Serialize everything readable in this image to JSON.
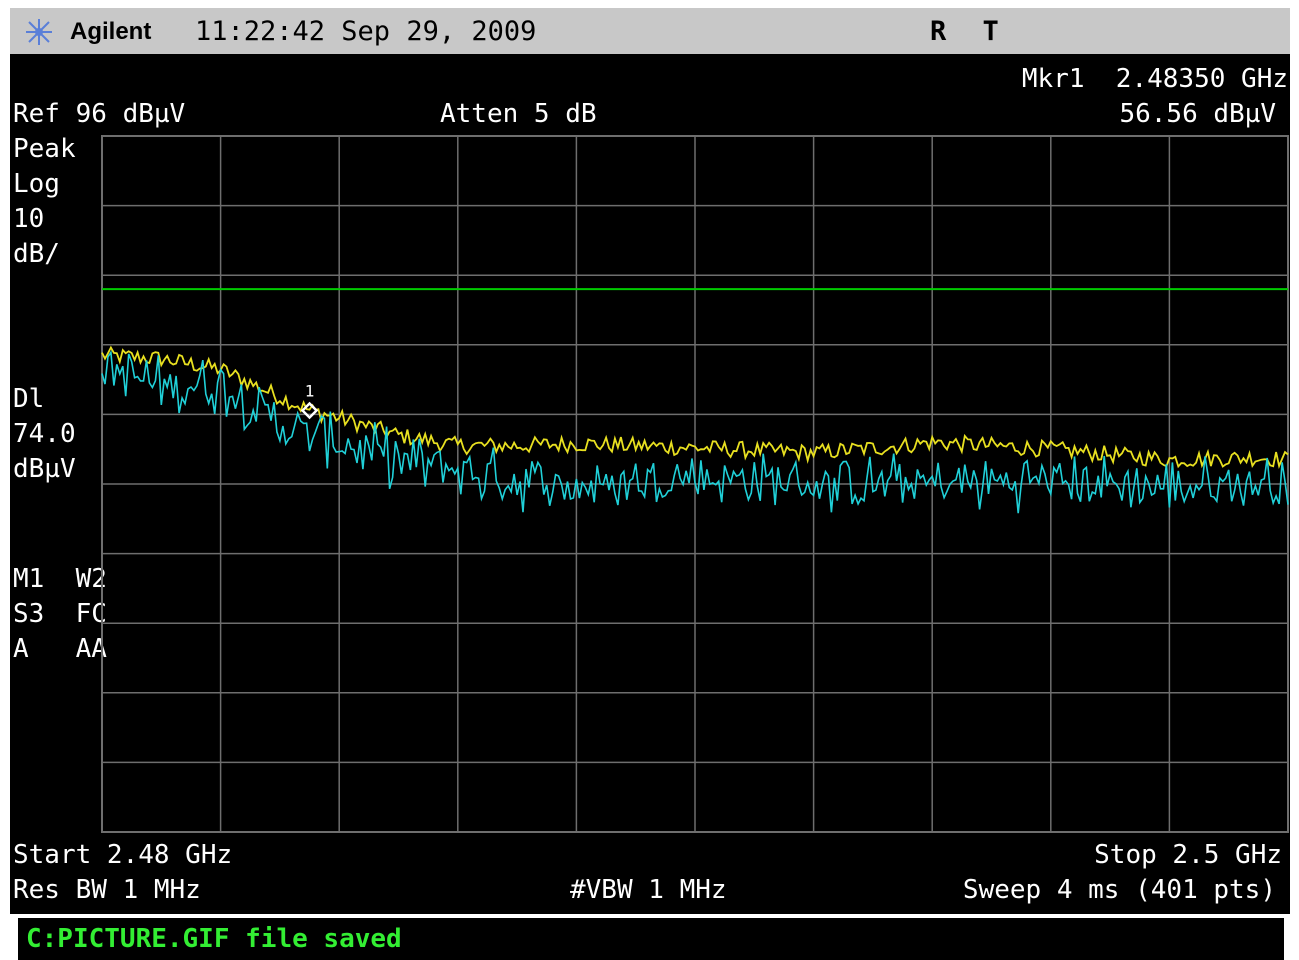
{
  "header": {
    "brand": "Agilent",
    "datetime": "11:22:42  Sep 29, 2009",
    "flags": "R T",
    "logo_icon": "agilent-spark-icon"
  },
  "display": {
    "ref_level": "Ref 96 dBµV",
    "attenuation": "Atten 5 dB",
    "marker_label": "Mkr1  2.48350 GHz",
    "marker_value": "56.56 dBµV",
    "detector": "Peak",
    "scale_type": "Log",
    "scale_value": "10",
    "scale_unit": "dB/",
    "display_line_label": "Dl",
    "display_line_value": "74.0",
    "display_line_unit": "dBµV",
    "trace_modes": [
      "M1  W2",
      "S3  FC",
      "A   AA"
    ],
    "marker_number": "1",
    "start_freq": "Start 2.48 GHz",
    "stop_freq": "Stop 2.5 GHz",
    "res_bw": "Res BW 1 MHz",
    "vbw": "#VBW 1 MHz",
    "sweep": "Sweep 4 ms (401 pts)"
  },
  "status": {
    "message": "C:PICTURE.GIF file saved"
  },
  "colors": {
    "screen_bg": "#000000",
    "grid": "#6e6e6e",
    "display_line": "#00cc00",
    "trace_max_hold": "#e8e020",
    "trace_clear_write": "#20d0d8",
    "marker": "#ffffff"
  },
  "chart_data": {
    "type": "line",
    "x_unit": "GHz",
    "y_unit": "dBµV",
    "xlim": [
      2.48,
      2.5
    ],
    "ylim": [
      -4,
      96
    ],
    "y_scale_db_per_div": 10,
    "x_divisions": 10,
    "y_divisions": 10,
    "grid": true,
    "display_line": 74.0,
    "marker": {
      "x": 2.4835,
      "y": 56.56,
      "label": "1"
    },
    "series": [
      {
        "color": "#e8e020",
        "x": [
          2.48,
          2.481,
          2.482,
          2.483,
          2.4835,
          2.484,
          2.485,
          2.486,
          2.487,
          2.488,
          2.49,
          2.492,
          2.4935,
          2.494,
          2.496,
          2.498,
          2.4995,
          2.5
        ],
        "y": [
          64.5,
          64.0,
          62.5,
          58.5,
          56.6,
          55.5,
          53.0,
          51.5,
          51.5,
          51.8,
          51.2,
          50.5,
          51.5,
          52.0,
          51.0,
          49.5,
          49.8,
          49.5
        ]
      },
      {
        "color": "#20d0d8",
        "x": [
          2.48,
          2.481,
          2.482,
          2.483,
          2.484,
          2.485,
          2.486,
          2.487,
          2.488,
          2.49,
          2.492,
          2.494,
          2.496,
          2.498,
          2.4995,
          2.5
        ],
        "y": [
          63.0,
          60.0,
          60.5,
          54.5,
          52.0,
          49.5,
          48.0,
          46.5,
          45.5,
          47.0,
          46.0,
          46.0,
          46.5,
          45.5,
          46.0,
          47.0
        ]
      }
    ]
  }
}
